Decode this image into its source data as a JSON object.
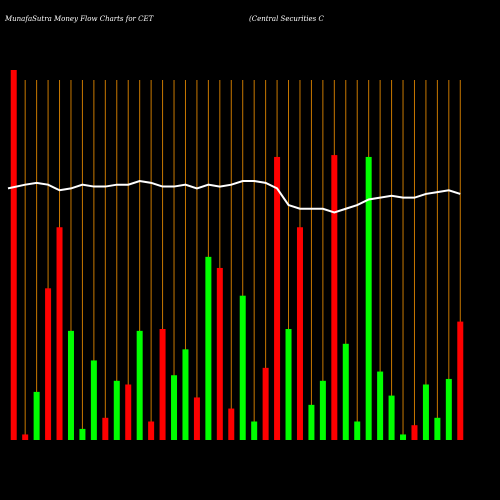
{
  "chart_data": {
    "type": "bar",
    "title_left": "MunafaSutra  Money Flow  Charts for CET",
    "title_right": "(Central Securities C",
    "bar_colors": {
      "up": "#00ff00",
      "down": "#ff0000"
    },
    "line_color": "#ffffff",
    "grid_color": "#c87800",
    "background": "#000000",
    "ylim": [
      0,
      100
    ],
    "categories": [
      "",
      "",
      "",
      "",
      "",
      "",
      "",
      "",
      "",
      "",
      "",
      "",
      "",
      "",
      "",
      "",
      "",
      "",
      "",
      "",
      "",
      "",
      "",
      "",
      "",
      "",
      "",
      "",
      "",
      "",
      "",
      "",
      "",
      "",
      "",
      "",
      "",
      "",
      "",
      "",
      "",
      "",
      "",
      "",
      "",
      "",
      "",
      "",
      "",
      "",
      "",
      "",
      "",
      "",
      "",
      "",
      "",
      ""
    ],
    "series": [
      {
        "values": [
          100,
          0,
          0,
          1.5,
          0,
          13,
          0,
          41,
          0,
          57.5,
          0,
          29.5,
          0,
          3,
          0,
          21.5,
          0,
          6,
          0,
          16,
          0,
          15,
          0,
          29.5,
          0,
          5,
          0,
          30,
          0,
          17.5,
          0,
          24.5,
          0,
          11.5,
          0,
          49.5,
          0,
          46.5,
          0,
          8.5,
          0,
          39,
          0,
          5,
          0,
          19.5,
          0,
          76.5,
          0,
          30,
          0,
          57.5,
          0,
          9.5,
          0,
          16,
          0,
          77
        ],
        "colors": [
          "down",
          "down",
          "down",
          "down",
          "down",
          "up",
          "down",
          "down",
          "down",
          "down",
          "down",
          "up",
          "down",
          "up",
          "down",
          "up",
          "down",
          "down",
          "down",
          "up",
          "down",
          "down",
          "down",
          "up",
          "down",
          "down",
          "down",
          "down",
          "down",
          "up",
          "down",
          "up",
          "down",
          "down",
          "down",
          "up",
          "down",
          "down",
          "down",
          "down",
          "down",
          "up",
          "down",
          "up",
          "down",
          "down",
          "down",
          "down",
          "down",
          "up",
          "down",
          "down",
          "down",
          "up",
          "down",
          "up",
          "down",
          "down"
        ]
      }
    ],
    "bars": [
      {
        "value": 100,
        "color": "down"
      },
      {
        "value": 1.5,
        "color": "down"
      },
      {
        "value": 13,
        "color": "up"
      },
      {
        "value": 41,
        "color": "down"
      },
      {
        "value": 57.5,
        "color": "down"
      },
      {
        "value": 29.5,
        "color": "up"
      },
      {
        "value": 3,
        "color": "up"
      },
      {
        "value": 21.5,
        "color": "up"
      },
      {
        "value": 6,
        "color": "down"
      },
      {
        "value": 16,
        "color": "up"
      },
      {
        "value": 15,
        "color": "down"
      },
      {
        "value": 29.5,
        "color": "up"
      },
      {
        "value": 5,
        "color": "down"
      },
      {
        "value": 30,
        "color": "down"
      },
      {
        "value": 17.5,
        "color": "up"
      },
      {
        "value": 24.5,
        "color": "up"
      },
      {
        "value": 11.5,
        "color": "down"
      },
      {
        "value": 49.5,
        "color": "up"
      },
      {
        "value": 46.5,
        "color": "down"
      },
      {
        "value": 8.5,
        "color": "down"
      },
      {
        "value": 39,
        "color": "up"
      },
      {
        "value": 5,
        "color": "up"
      },
      {
        "value": 19.5,
        "color": "down"
      },
      {
        "value": 76.5,
        "color": "down"
      },
      {
        "value": 30,
        "color": "up"
      },
      {
        "value": 57.5,
        "color": "down"
      },
      {
        "value": 9.5,
        "color": "up"
      },
      {
        "value": 16,
        "color": "up"
      },
      {
        "value": 77,
        "color": "down"
      },
      {
        "value": 26,
        "color": "up"
      },
      {
        "value": 5,
        "color": "up"
      },
      {
        "value": 76.5,
        "color": "up"
      },
      {
        "value": 18.5,
        "color": "up"
      },
      {
        "value": 12,
        "color": "up"
      },
      {
        "value": 1.5,
        "color": "up"
      },
      {
        "value": 4,
        "color": "down"
      },
      {
        "value": 15,
        "color": "up"
      },
      {
        "value": 6,
        "color": "up"
      },
      {
        "value": 16.5,
        "color": "up"
      },
      {
        "value": 32,
        "color": "down"
      }
    ],
    "line": [
      68,
      69,
      69.5,
      69,
      67.5,
      68,
      69,
      68.5,
      68.5,
      69,
      69,
      70,
      69.5,
      68.5,
      68.5,
      69,
      68,
      69,
      68.5,
      69,
      70,
      70,
      69.5,
      68,
      63.5,
      62.5,
      62.5,
      62.5,
      61.5,
      62.5,
      63.5,
      65,
      65.5,
      66,
      65.5,
      65.5,
      66.5,
      67,
      67.5,
      66.5
    ],
    "line_dates_left_start": true
  }
}
